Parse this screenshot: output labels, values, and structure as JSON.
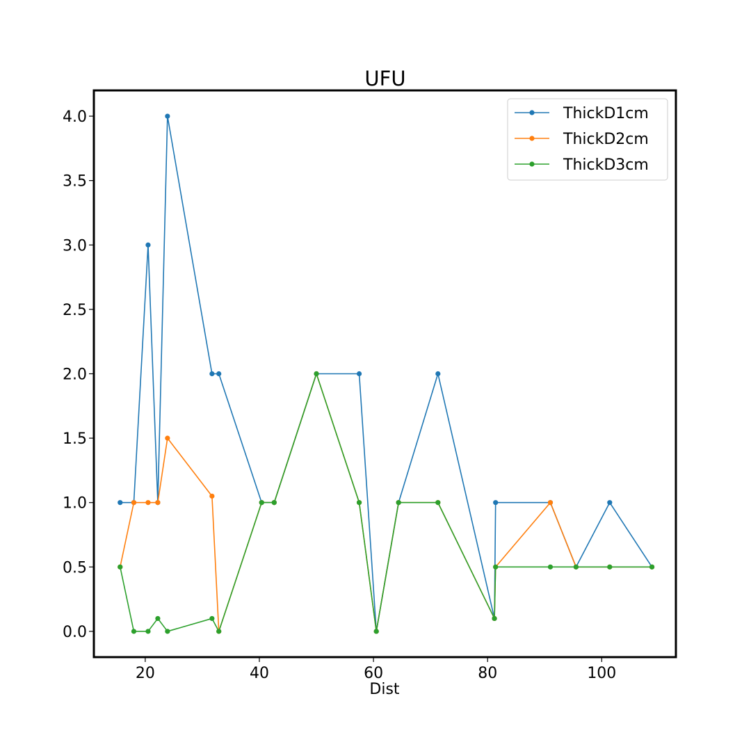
{
  "chart_data": {
    "type": "line",
    "title": "UFU",
    "xlabel": "Dist",
    "ylabel": "",
    "xlim": [
      11,
      113
    ],
    "ylim": [
      -0.2,
      4.2
    ],
    "x_ticks": [
      20,
      40,
      60,
      80,
      100
    ],
    "x_tick_labels": [
      "20",
      "40",
      "60",
      "80",
      "100"
    ],
    "y_ticks": [
      0.0,
      0.5,
      1.0,
      1.5,
      2.0,
      2.5,
      3.0,
      3.5,
      4.0
    ],
    "y_tick_labels": [
      "0.0",
      "0.5",
      "1.0",
      "1.5",
      "2.0",
      "2.5",
      "3.0",
      "3.5",
      "4.0"
    ],
    "grid": false,
    "legend_position": "upper right",
    "x": [
      15.6,
      18.0,
      20.5,
      22.2,
      23.9,
      31.7,
      32.9,
      40.4,
      42.6,
      50.0,
      57.5,
      60.5,
      64.4,
      71.3,
      81.2,
      81.4,
      91.0,
      95.5,
      101.4,
      108.8
    ],
    "series": [
      {
        "name": "ThickD1cm",
        "color": "#1f77b4",
        "values": [
          1.0,
          1.0,
          3.0,
          1.0,
          4.0,
          2.0,
          2.0,
          1.0,
          1.0,
          2.0,
          2.0,
          0.0,
          1.0,
          2.0,
          0.1,
          1.0,
          1.0,
          0.5,
          1.0,
          0.5
        ]
      },
      {
        "name": "ThickD2cm",
        "color": "#ff7f0e",
        "values": [
          0.5,
          1.0,
          1.0,
          1.0,
          1.5,
          1.05,
          0.0,
          1.0,
          1.0,
          2.0,
          1.0,
          0.0,
          1.0,
          1.0,
          0.1,
          0.5,
          1.0,
          0.5,
          0.5,
          0.5
        ]
      },
      {
        "name": "ThickD3cm",
        "color": "#2ca02c",
        "values": [
          0.5,
          0.0,
          0.0,
          0.1,
          0.0,
          0.1,
          0.0,
          1.0,
          1.0,
          2.0,
          1.0,
          0.0,
          1.0,
          1.0,
          0.1,
          0.5,
          0.5,
          0.5,
          0.5,
          0.5
        ]
      }
    ]
  }
}
